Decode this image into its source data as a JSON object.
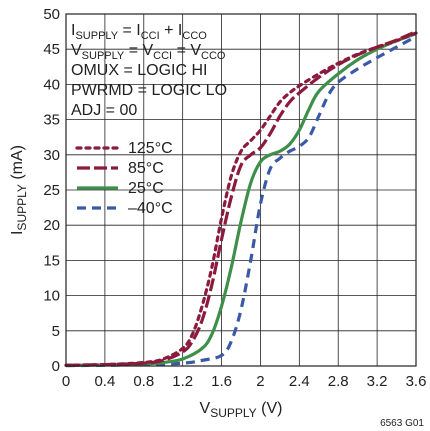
{
  "chart_data": {
    "type": "line",
    "xlabel": {
      "main": "V",
      "sub": "SUPPLY",
      "unit": " (V)"
    },
    "ylabel": {
      "main": "I",
      "sub": "SUPPLY",
      "unit": " (mA)"
    },
    "xlim": [
      0,
      3.6
    ],
    "ylim": [
      0,
      50
    ],
    "xticks": [
      "0",
      "0.4",
      "0.8",
      "1.2",
      "1.6",
      "2",
      "2.4",
      "2.8",
      "3.2",
      "3.6"
    ],
    "yticks": [
      "0",
      "5",
      "10",
      "15",
      "20",
      "25",
      "30",
      "35",
      "40",
      "45",
      "50"
    ],
    "grid": true,
    "legend_position": "left-middle",
    "conditions": [
      {
        "parts": [
          {
            "t": "I"
          },
          {
            "t": "SUPPLY",
            "sub": true
          },
          {
            "t": " = I"
          },
          {
            "t": "CCI",
            "sub": true
          },
          {
            "t": " + I"
          },
          {
            "t": "CCO",
            "sub": true
          }
        ]
      },
      {
        "parts": [
          {
            "t": "V"
          },
          {
            "t": "SUPPLY",
            "sub": true
          },
          {
            "t": " = V"
          },
          {
            "t": "CCI",
            "sub": true
          },
          {
            "t": " = V"
          },
          {
            "t": "CCO",
            "sub": true
          }
        ]
      },
      {
        "parts": [
          {
            "t": "OMUX = LOGIC HI"
          }
        ]
      },
      {
        "parts": [
          {
            "t": "PWRMD = LOGIC LO"
          }
        ]
      },
      {
        "parts": [
          {
            "t": "ADJ = 00"
          }
        ]
      }
    ],
    "series": [
      {
        "name": "125°C",
        "color": "#8b1a3c",
        "dash": "dot",
        "points": [
          [
            0,
            0.1
          ],
          [
            0.4,
            0.2
          ],
          [
            0.8,
            0.5
          ],
          [
            1.0,
            1.0
          ],
          [
            1.2,
            2.5
          ],
          [
            1.3,
            4.5
          ],
          [
            1.4,
            8.5
          ],
          [
            1.5,
            14
          ],
          [
            1.6,
            21
          ],
          [
            1.7,
            27
          ],
          [
            1.8,
            30.5
          ],
          [
            1.9,
            32
          ],
          [
            2.0,
            33.5
          ],
          [
            2.1,
            35.5
          ],
          [
            2.2,
            37.5
          ],
          [
            2.3,
            38.8
          ],
          [
            2.4,
            39.8
          ],
          [
            2.6,
            41.5
          ],
          [
            2.8,
            43
          ],
          [
            3.0,
            44.3
          ],
          [
            3.2,
            45.3
          ],
          [
            3.4,
            46.2
          ],
          [
            3.6,
            47.3
          ]
        ]
      },
      {
        "name": "85°C",
        "color": "#8b1a3c",
        "dash": "dash",
        "points": [
          [
            0,
            0.1
          ],
          [
            0.4,
            0.2
          ],
          [
            0.8,
            0.4
          ],
          [
            1.0,
            0.8
          ],
          [
            1.2,
            2.0
          ],
          [
            1.3,
            3.5
          ],
          [
            1.4,
            6.5
          ],
          [
            1.5,
            11.5
          ],
          [
            1.6,
            18
          ],
          [
            1.7,
            24
          ],
          [
            1.8,
            28.5
          ],
          [
            1.9,
            30
          ],
          [
            2.0,
            31
          ],
          [
            2.1,
            33
          ],
          [
            2.2,
            35.5
          ],
          [
            2.3,
            37.5
          ],
          [
            2.4,
            38.8
          ],
          [
            2.6,
            41
          ],
          [
            2.8,
            42.8
          ],
          [
            3.0,
            44.2
          ],
          [
            3.2,
            45.3
          ],
          [
            3.4,
            46.3
          ],
          [
            3.6,
            47.5
          ]
        ]
      },
      {
        "name": "25°C",
        "color": "#3d8f4a",
        "dash": "solid",
        "points": [
          [
            0,
            0.1
          ],
          [
            0.4,
            0.15
          ],
          [
            0.8,
            0.3
          ],
          [
            1.0,
            0.5
          ],
          [
            1.2,
            1.0
          ],
          [
            1.4,
            2.5
          ],
          [
            1.5,
            4.5
          ],
          [
            1.6,
            8.5
          ],
          [
            1.7,
            14
          ],
          [
            1.8,
            20.5
          ],
          [
            1.9,
            26
          ],
          [
            2.0,
            29
          ],
          [
            2.1,
            30
          ],
          [
            2.2,
            30.5
          ],
          [
            2.3,
            31.5
          ],
          [
            2.4,
            33.5
          ],
          [
            2.5,
            36.5
          ],
          [
            2.6,
            39
          ],
          [
            2.8,
            41.5
          ],
          [
            3.0,
            43.5
          ],
          [
            3.2,
            45
          ],
          [
            3.4,
            46.2
          ],
          [
            3.6,
            47.2
          ]
        ]
      },
      {
        "name": "–40°C",
        "color": "#3a5aa8",
        "dash": "longdash",
        "points": [
          [
            0,
            0.05
          ],
          [
            0.4,
            0.1
          ],
          [
            0.8,
            0.2
          ],
          [
            1.2,
            0.4
          ],
          [
            1.4,
            0.8
          ],
          [
            1.6,
            1.5
          ],
          [
            1.7,
            3.5
          ],
          [
            1.8,
            8
          ],
          [
            1.9,
            15
          ],
          [
            2.0,
            23
          ],
          [
            2.1,
            28
          ],
          [
            2.2,
            29.5
          ],
          [
            2.3,
            30.5
          ],
          [
            2.4,
            31.2
          ],
          [
            2.5,
            32.5
          ],
          [
            2.6,
            35.5
          ],
          [
            2.7,
            38.5
          ],
          [
            2.8,
            40.3
          ],
          [
            3.0,
            42.2
          ],
          [
            3.2,
            43.8
          ],
          [
            3.4,
            45.3
          ],
          [
            3.6,
            46.8
          ]
        ]
      }
    ],
    "figure_id": "6563 G01"
  }
}
